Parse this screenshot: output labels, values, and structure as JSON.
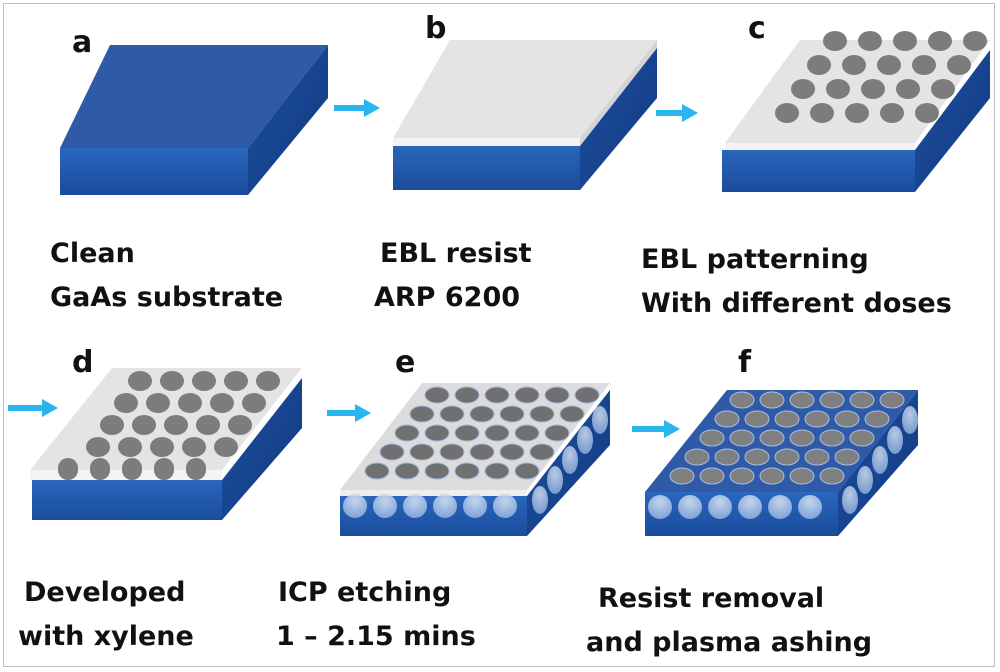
{
  "panels": [
    {
      "letter": "a",
      "caption_1": "Clean",
      "caption_2": "GaAs substrate"
    },
    {
      "letter": "b",
      "caption_1": "EBL resist",
      "caption_2": "ARP 6200"
    },
    {
      "letter": "c",
      "caption_1": "EBL patterning",
      "caption_2": "With different doses"
    },
    {
      "letter": "d",
      "caption_1": "Developed",
      "caption_2": "with xylene"
    },
    {
      "letter": "e",
      "caption_1": "ICP etching",
      "caption_2": "1 – 2.15 mins"
    },
    {
      "letter": "f",
      "caption_1": "Resist removal",
      "caption_2": "and plasma ashing"
    }
  ],
  "colors": {
    "substrate_top": "#2e5aa8",
    "substrate_front": "#1e56a8",
    "substrate_side": "#16428a",
    "resist": "#e6e6e6",
    "dots": "#7c7c7c",
    "arrow": "#29b6f0"
  }
}
